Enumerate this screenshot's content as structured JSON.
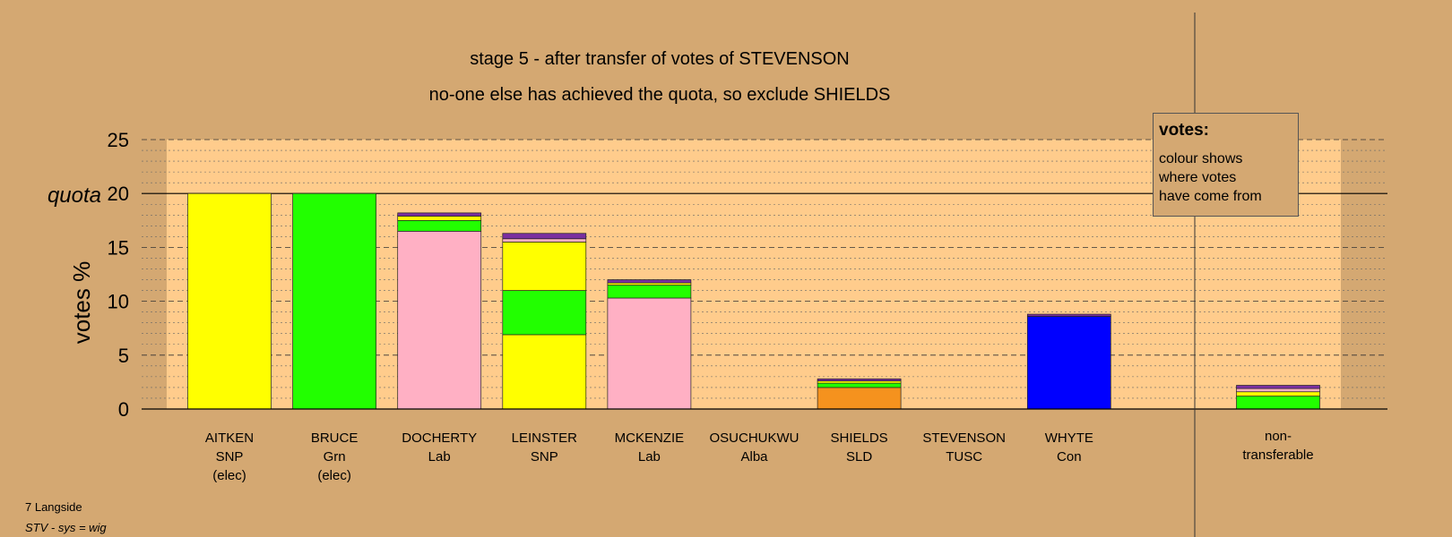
{
  "chart_data": {
    "type": "bar",
    "stacked": true,
    "title": "stage 5 - after transfer of votes of STEVENSON",
    "subtitle": "no-one else has achieved the quota, so exclude SHIELDS",
    "ylabel": "votes %",
    "ylim": [
      0,
      25
    ],
    "yticks": [
      "0",
      "5",
      "10",
      "15",
      "20",
      "25"
    ],
    "quota_label": "quota",
    "quota": 20,
    "colors": {
      "SNP": "#ffff00",
      "Grn": "#22ff00",
      "Lab": "#ffb0c4",
      "Alba": "#7a2fa0",
      "SLD": "#f5921e",
      "TUSC": "#cc2222",
      "Con": "#0000ff"
    },
    "candidates": [
      {
        "name": "AITKEN",
        "party": "SNP",
        "note": "(elec)",
        "segments": [
          {
            "from": "SNP",
            "value": 20.0
          }
        ]
      },
      {
        "name": "BRUCE",
        "party": "Grn",
        "note": "(elec)",
        "segments": [
          {
            "from": "Grn",
            "value": 20.0
          }
        ]
      },
      {
        "name": "DOCHERTY",
        "party": "Lab",
        "note": "",
        "segments": [
          {
            "from": "Lab",
            "value": 16.5
          },
          {
            "from": "Grn",
            "value": 1.0
          },
          {
            "from": "SNP",
            "value": 0.4
          },
          {
            "from": "Alba",
            "value": 0.3
          }
        ]
      },
      {
        "name": "LEINSTER",
        "party": "SNP",
        "note": "",
        "segments": [
          {
            "from": "SNP",
            "value": 6.9
          },
          {
            "from": "Grn",
            "value": 4.1
          },
          {
            "from": "SNP",
            "value": 4.5
          },
          {
            "from": "Lab",
            "value": 0.3
          },
          {
            "from": "Alba",
            "value": 0.5
          }
        ]
      },
      {
        "name": "MCKENZIE",
        "party": "Lab",
        "note": "",
        "segments": [
          {
            "from": "Lab",
            "value": 10.3
          },
          {
            "from": "Grn",
            "value": 1.2
          },
          {
            "from": "SNP",
            "value": 0.2
          },
          {
            "from": "Alba",
            "value": 0.3
          }
        ]
      },
      {
        "name": "OSUCHUKWU",
        "party": "Alba",
        "note": "",
        "segments": []
      },
      {
        "name": "SHIELDS",
        "party": "SLD",
        "note": "",
        "segments": [
          {
            "from": "SLD",
            "value": 2.0
          },
          {
            "from": "Grn",
            "value": 0.4
          },
          {
            "from": "SNP",
            "value": 0.2
          },
          {
            "from": "Alba",
            "value": 0.2
          }
        ]
      },
      {
        "name": "STEVENSON",
        "party": "TUSC",
        "note": "",
        "segments": []
      },
      {
        "name": "WHYTE",
        "party": "Con",
        "note": "",
        "segments": [
          {
            "from": "Con",
            "value": 8.6
          },
          {
            "from": "Alba",
            "value": 0.2
          }
        ]
      }
    ],
    "nontransferable": {
      "label1": "non-",
      "label2": "transferable",
      "segments": [
        {
          "from": "Grn",
          "value": 1.2
        },
        {
          "from": "SNP",
          "value": 0.4
        },
        {
          "from": "Lab",
          "value": 0.3
        },
        {
          "from": "Alba",
          "value": 0.3
        }
      ]
    },
    "legend": {
      "title": "votes:",
      "lines": [
        "colour shows",
        "where votes",
        "have come from"
      ]
    }
  },
  "footer": {
    "ward": "7 Langside",
    "system": "STV - sys = wig"
  }
}
